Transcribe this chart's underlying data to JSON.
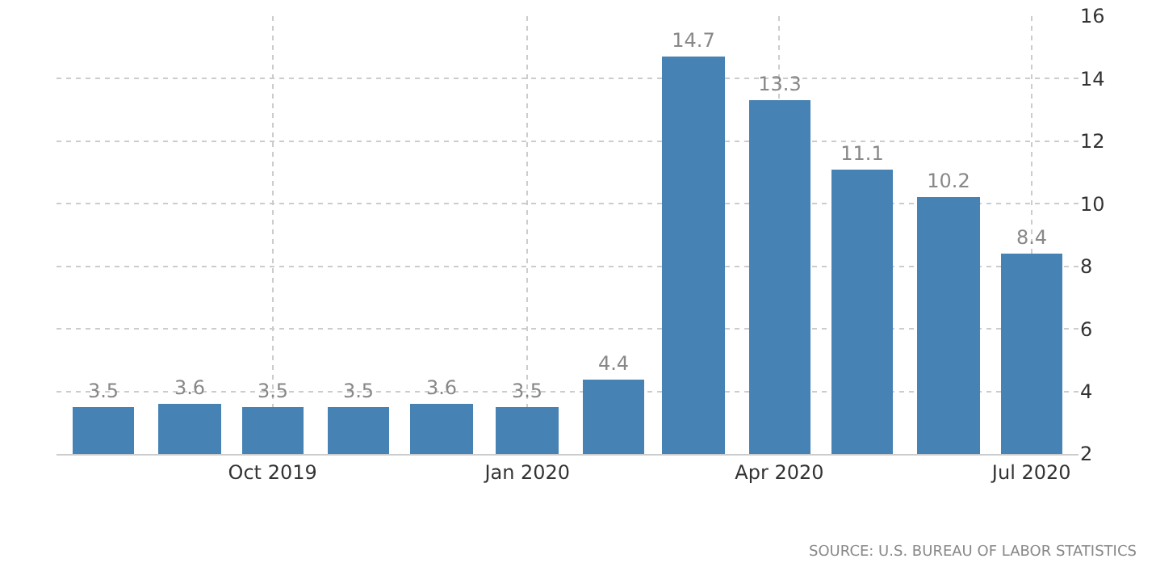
{
  "chart_data": {
    "type": "bar",
    "x": [
      "2019-08",
      "2019-09",
      "2019-10",
      "2019-11",
      "2019-12",
      "2020-01",
      "2020-02",
      "2020-03",
      "2020-04",
      "2020-05",
      "2020-06",
      "2020-07"
    ],
    "values": [
      3.5,
      3.6,
      3.5,
      3.5,
      3.6,
      3.5,
      4.4,
      14.7,
      13.3,
      11.1,
      10.2,
      8.4
    ],
    "color": "#4682b4",
    "xlim": [
      "2019-07-15",
      "2020-07-18"
    ],
    "xticks": [
      {
        "value": "2019-10",
        "label": "Oct 2019"
      },
      {
        "value": "2020-01",
        "label": "Jan 2020"
      },
      {
        "value": "2020-04",
        "label": "Apr 2020"
      },
      {
        "value": "2020-07",
        "label": "Jul 2020"
      }
    ],
    "ylim": [
      2,
      16
    ],
    "yticks": [
      2,
      4,
      6,
      8,
      10,
      12,
      14,
      16
    ],
    "grid": true,
    "data_labels": true,
    "annotations": [
      "SOURCE: U.S. BUREAU OF LABOR STATISTICS"
    ]
  }
}
